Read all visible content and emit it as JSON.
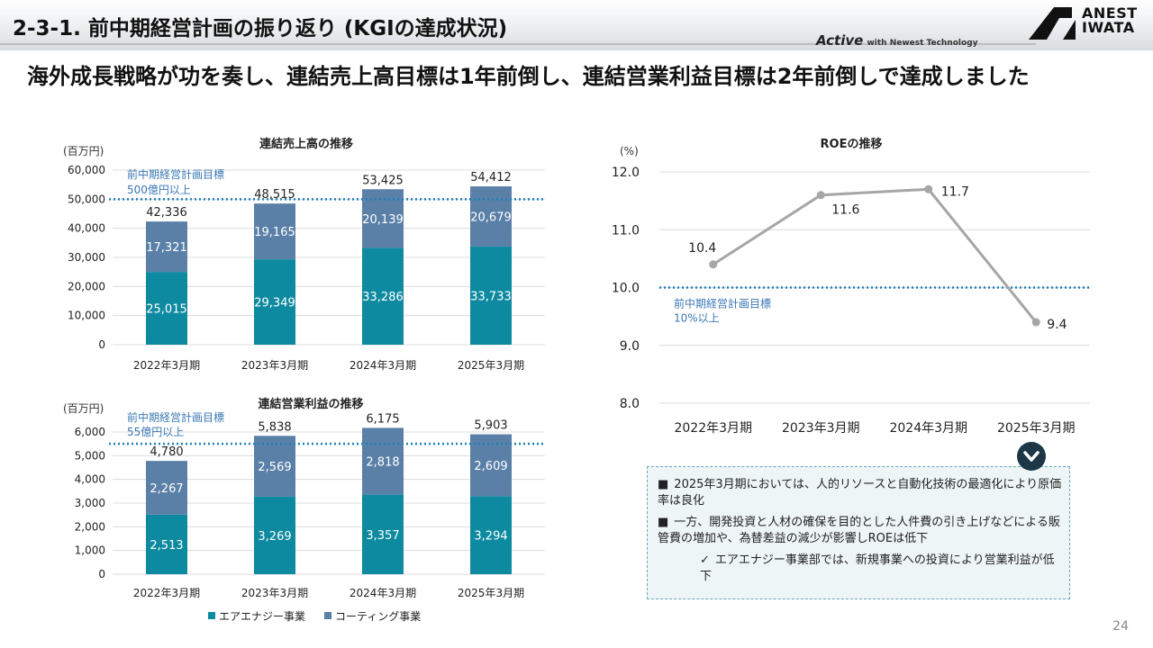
{
  "header": {
    "title": "2-3-1. 前中期経営計画の振り返り (KGIの達成状況)",
    "tagline_brand": "Active",
    "tagline_text": "with Newest Technology",
    "logo_line1": "ANEST",
    "logo_line2": "IWATA"
  },
  "headline": "海外成長戦略が功を奏し、連結売上高目標は1年前倒し、連結営業利益目標は2年前倒しで達成しました",
  "categories": [
    "2022年3月期",
    "2023年3月期",
    "2024年3月期",
    "2025年3月期"
  ],
  "legend": {
    "series1": "エアエナジー事業",
    "series2": "コーティング事業",
    "color1": "#0e8aa0",
    "color2": "#5b80a8"
  },
  "chart_data": [
    {
      "type": "bar",
      "title": "連結売上高の推移",
      "unit": "(百万円)",
      "categories": [
        "2022年3月期",
        "2023年3月期",
        "2024年3月期",
        "2025年3月期"
      ],
      "series": [
        {
          "name": "エアエナジー事業",
          "values": [
            25015,
            29349,
            33286,
            33733
          ]
        },
        {
          "name": "コーティング事業",
          "values": [
            17321,
            19165,
            20139,
            20679
          ]
        }
      ],
      "totals": [
        42336,
        48515,
        53425,
        54412
      ],
      "ylim": [
        0,
        60000
      ],
      "yticks": [
        0,
        10000,
        20000,
        30000,
        40000,
        50000,
        60000
      ],
      "target": {
        "value": 50000,
        "label1": "前中期経営計画目標",
        "label2": "500億円以上"
      }
    },
    {
      "type": "bar",
      "title": "連結営業利益の推移",
      "unit": "(百万円)",
      "categories": [
        "2022年3月期",
        "2023年3月期",
        "2024年3月期",
        "2025年3月期"
      ],
      "series": [
        {
          "name": "エアエナジー事業",
          "values": [
            2513,
            3269,
            3357,
            3294
          ]
        },
        {
          "name": "コーティング事業",
          "values": [
            2267,
            2569,
            2818,
            2609
          ]
        }
      ],
      "totals": [
        4780,
        5838,
        6175,
        5903
      ],
      "ylim": [
        0,
        6000
      ],
      "yticks": [
        0,
        1000,
        2000,
        3000,
        4000,
        5000,
        6000
      ],
      "target": {
        "value": 5500,
        "label1": "前中期経営計画目標",
        "label2": "55億円以上"
      }
    },
    {
      "type": "line",
      "title": "ROEの推移",
      "unit": "(%)",
      "categories": [
        "2022年3月期",
        "2023年3月期",
        "2024年3月期",
        "2025年3月期"
      ],
      "values": [
        10.4,
        11.6,
        11.7,
        9.4
      ],
      "ylim": [
        8.0,
        12.0
      ],
      "yticks": [
        "8.0",
        "9.0",
        "10.0",
        "11.0",
        "12.0"
      ],
      "target": {
        "value": 10.0,
        "label1": "前中期経営計画目標",
        "label2": "10%以上"
      }
    }
  ],
  "notes": [
    {
      "bullet": "■",
      "text": "2025年3月期においては、人的リソースと自動化技術の最適化により原価率は良化"
    },
    {
      "bullet": "■",
      "text": "一方、開発投資と人材の確保を目的とした人件費の引き上げなどによる販管費の増加や、為替差益の減少が影響しROEは低下"
    },
    {
      "bullet": "✓",
      "text": "エアエナジー事業部では、新規事業への投資により営業利益が低下"
    }
  ],
  "page_number": "24"
}
